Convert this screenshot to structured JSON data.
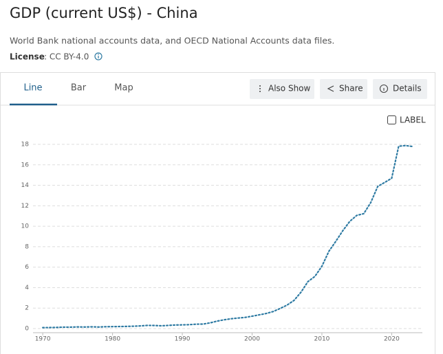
{
  "header": {
    "title": "GDP (current US$) - China",
    "source": "World Bank national accounts data, and OECD National Accounts data files.",
    "license_label": "License",
    "license_value": ": CC BY-4.0"
  },
  "tabs": [
    "Line",
    "Bar",
    "Map"
  ],
  "buttons": [
    "Also Show",
    "Share",
    "Details"
  ],
  "label_toggle": "LABEL",
  "chart_data": {
    "type": "line",
    "color": "#2f7ba3",
    "grid": true,
    "x": [
      1970,
      1971,
      1972,
      1973,
      1974,
      1975,
      1976,
      1977,
      1978,
      1979,
      1980,
      1981,
      1982,
      1983,
      1984,
      1985,
      1986,
      1987,
      1988,
      1989,
      1990,
      1991,
      1992,
      1993,
      1994,
      1995,
      1996,
      1997,
      1998,
      1999,
      2000,
      2001,
      2002,
      2003,
      2004,
      2005,
      2006,
      2007,
      2008,
      2009,
      2010,
      2011,
      2012,
      2013,
      2014,
      2015,
      2016,
      2017,
      2018,
      2019,
      2020,
      2021,
      2022,
      2023
    ],
    "values": [
      0.09,
      0.1,
      0.11,
      0.14,
      0.14,
      0.16,
      0.15,
      0.17,
      0.15,
      0.18,
      0.19,
      0.2,
      0.21,
      0.23,
      0.26,
      0.31,
      0.3,
      0.27,
      0.31,
      0.35,
      0.36,
      0.38,
      0.43,
      0.44,
      0.56,
      0.73,
      0.86,
      0.96,
      1.03,
      1.09,
      1.21,
      1.34,
      1.47,
      1.66,
      1.96,
      2.29,
      2.75,
      3.55,
      4.59,
      5.1,
      6.09,
      7.55,
      8.53,
      9.57,
      10.48,
      11.06,
      11.23,
      12.31,
      13.89,
      14.28,
      14.69,
      17.82,
      17.88,
      17.79
    ],
    "xlim": [
      1969,
      2024
    ],
    "xticks": [
      1970,
      1980,
      1990,
      2000,
      2010,
      2020
    ],
    "ylim": [
      0,
      18
    ],
    "yticks": [
      0,
      2,
      4,
      6,
      8,
      10,
      12,
      14,
      16,
      18
    ]
  }
}
